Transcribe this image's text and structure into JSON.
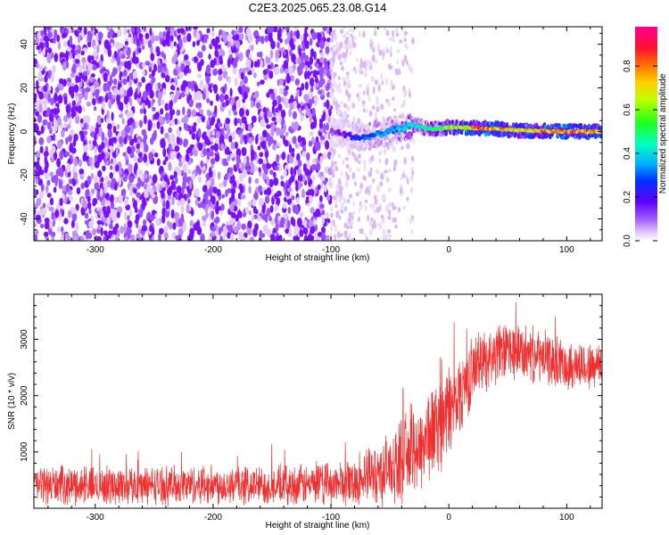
{
  "title": "C2E3.2025.065.23.08.G14",
  "chart_data": [
    {
      "type": "heatmap",
      "xlabel": "Height of straight line (km)",
      "ylabel": "Frequency (Hz)",
      "xlim": [
        -352,
        130
      ],
      "ylim": [
        -50,
        48
      ],
      "xticks": [
        -300,
        -200,
        -100,
        0,
        100
      ],
      "yticks": [
        -40,
        -20,
        0,
        20,
        40
      ],
      "colorbar": {
        "label": "Normalized spectral amplitude",
        "range": [
          0,
          0.98
        ],
        "ticks": [
          0.0,
          0.2,
          0.4,
          0.6,
          0.8
        ],
        "colormap": [
          "#ffffff",
          "#d9b8f5",
          "#7a00ff",
          "#0033ff",
          "#00ccff",
          "#00ff99",
          "#33ff00",
          "#ccff00",
          "#ffcc00",
          "#ff6600",
          "#ff0033",
          "#ff00aa"
        ]
      },
      "series": [
        {
          "description": "broadband noise",
          "x_range": [
            -352,
            -100
          ],
          "frequency_range": [
            -50,
            48
          ],
          "amplitude_range": [
            0.02,
            0.12
          ]
        },
        {
          "description": "transition scatter",
          "x_range": [
            -100,
            -30
          ],
          "frequency_range": [
            -50,
            48
          ],
          "amplitude_range": [
            0.0,
            0.05
          ]
        },
        {
          "description": "signal tone",
          "points": [
            {
              "x": -100,
              "freq": 0,
              "amp": 0.15
            },
            {
              "x": -75,
              "freq": -3,
              "amp": 0.3
            },
            {
              "x": -50,
              "freq": 0,
              "amp": 0.35
            },
            {
              "x": -30,
              "freq": 3,
              "amp": 0.45
            },
            {
              "x": -15,
              "freq": 1,
              "amp": 0.5
            },
            {
              "x": 0,
              "freq": 2,
              "amp": 0.6
            },
            {
              "x": 30,
              "freq": 1.5,
              "amp": 0.9
            },
            {
              "x": 60,
              "freq": 0.5,
              "amp": 0.75
            },
            {
              "x": 100,
              "freq": 0,
              "amp": 0.95
            },
            {
              "x": 130,
              "freq": 0,
              "amp": 0.8
            }
          ]
        }
      ]
    },
    {
      "type": "line",
      "xlabel": "Height of straight line (km)",
      "ylabel": "SNR (10 * v/v)",
      "xlim": [
        -352,
        130
      ],
      "ylim": [
        0,
        3800
      ],
      "xticks": [
        -300,
        -200,
        -100,
        0,
        100
      ],
      "yticks": [
        1000,
        2000,
        3000
      ],
      "color": "#f03030",
      "series": [
        {
          "x": [
            -352,
            -300,
            -250,
            -200,
            -150,
            -100,
            -75,
            -50,
            -25,
            0,
            25,
            50,
            75,
            100,
            130
          ],
          "mean": [
            420,
            400,
            410,
            420,
            400,
            420,
            500,
            700,
            1100,
            1700,
            2600,
            2800,
            2700,
            2550,
            2500
          ],
          "spread": [
            320,
            320,
            320,
            330,
            330,
            350,
            420,
            600,
            800,
            800,
            520,
            500,
            450,
            420,
            400
          ]
        }
      ]
    }
  ]
}
